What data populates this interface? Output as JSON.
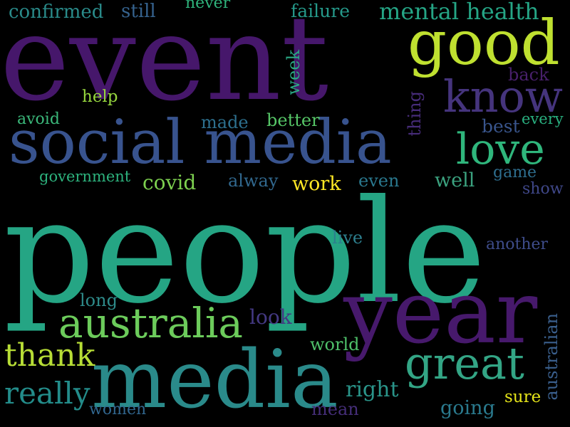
{
  "words": [
    {
      "id": "people",
      "text": "people",
      "color": "#25a584"
    },
    {
      "id": "event",
      "text": "event",
      "color": "#46176b"
    },
    {
      "id": "year",
      "text": "year",
      "color": "#47196c"
    },
    {
      "id": "media",
      "text": "media",
      "color": "#2a8a8a"
    },
    {
      "id": "social_media",
      "text": "social media",
      "color": "#38538e"
    },
    {
      "id": "good",
      "text": "good",
      "color": "#bfe030"
    },
    {
      "id": "know",
      "text": "know",
      "color": "#45347d"
    },
    {
      "id": "love",
      "text": "love",
      "color": "#2fb67c"
    },
    {
      "id": "great",
      "text": "great",
      "color": "#33a585"
    },
    {
      "id": "australia",
      "text": "australia",
      "color": "#6ccb5b"
    },
    {
      "id": "thank",
      "text": "thank",
      "color": "#b7dd36"
    },
    {
      "id": "really",
      "text": "really",
      "color": "#238c8a"
    },
    {
      "id": "mental_health",
      "text": "mental health",
      "color": "#25a585"
    },
    {
      "id": "confirmed",
      "text": "confirmed",
      "color": "#2a8b8a"
    },
    {
      "id": "still",
      "text": "still",
      "color": "#35628d"
    },
    {
      "id": "never",
      "text": "never",
      "color": "#2fb47c"
    },
    {
      "id": "failure",
      "text": "failure",
      "color": "#25998a"
    },
    {
      "id": "week",
      "text": "week",
      "color": "#2aa783"
    },
    {
      "id": "back",
      "text": "back",
      "color": "#48206b"
    },
    {
      "id": "help",
      "text": "help",
      "color": "#96d63e"
    },
    {
      "id": "thing",
      "text": "thing",
      "color": "#472c7a"
    },
    {
      "id": "avoid",
      "text": "avoid",
      "color": "#3bb87a"
    },
    {
      "id": "made",
      "text": "made",
      "color": "#2d708e"
    },
    {
      "id": "better",
      "text": "better",
      "color": "#56c667"
    },
    {
      "id": "every",
      "text": "every",
      "color": "#29af7f"
    },
    {
      "id": "best",
      "text": "best",
      "color": "#39558c"
    },
    {
      "id": "government",
      "text": "government",
      "color": "#2db27d"
    },
    {
      "id": "covid",
      "text": "covid",
      "color": "#7dd04f"
    },
    {
      "id": "alway",
      "text": "alway",
      "color": "#31688e"
    },
    {
      "id": "work",
      "text": "work",
      "color": "#fde725"
    },
    {
      "id": "even",
      "text": "even",
      "color": "#2a788e"
    },
    {
      "id": "well",
      "text": "well",
      "color": "#3ba27f"
    },
    {
      "id": "game",
      "text": "game",
      "color": "#2e6e8e"
    },
    {
      "id": "show",
      "text": "show",
      "color": "#3f4788"
    },
    {
      "id": "live",
      "text": "live",
      "color": "#2d7f8e"
    },
    {
      "id": "another",
      "text": "another",
      "color": "#3e4c8a"
    },
    {
      "id": "long",
      "text": "long",
      "color": "#2e8b8a"
    },
    {
      "id": "look",
      "text": "look",
      "color": "#443983"
    },
    {
      "id": "australian",
      "text": "australian",
      "color": "#3a5f8d"
    },
    {
      "id": "world",
      "text": "world",
      "color": "#4fc16a"
    },
    {
      "id": "right",
      "text": "right",
      "color": "#2a958a"
    },
    {
      "id": "sure",
      "text": "sure",
      "color": "#e5e419"
    },
    {
      "id": "women",
      "text": "women",
      "color": "#31668e"
    },
    {
      "id": "mean",
      "text": "mean",
      "color": "#452e79"
    },
    {
      "id": "going",
      "text": "going",
      "color": "#2a7a8e"
    }
  ]
}
